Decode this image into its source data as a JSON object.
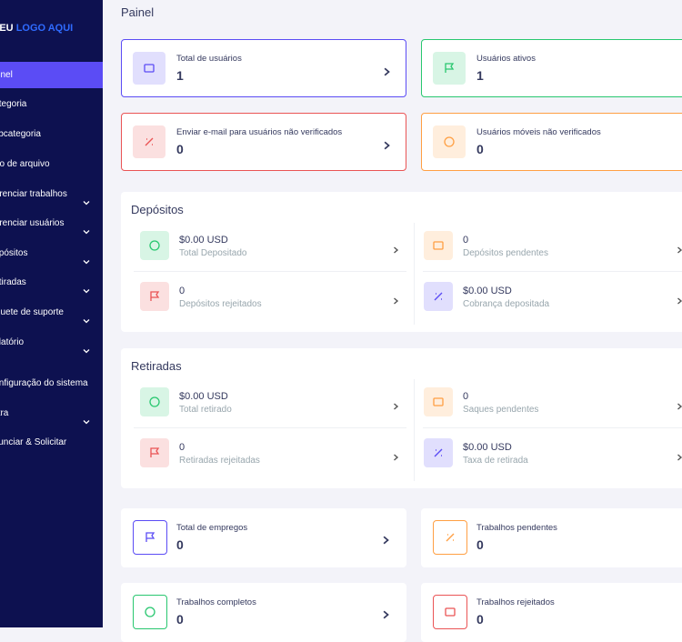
{
  "sidebar": {
    "logo_prefix": "SEU",
    "logo": "LOGO AQUI",
    "items": [
      {
        "label": "Painel",
        "active": true
      },
      {
        "label": "Categoria"
      },
      {
        "label": "Subcategoria"
      },
      {
        "label": "Tipo de arquivo"
      },
      {
        "label": "Gerenciar trabalhos",
        "submenu": true
      },
      {
        "label": "Gerenciar usuários",
        "submenu": true
      },
      {
        "label": "Depósitos",
        "submenu": true
      },
      {
        "label": "Retiradas",
        "submenu": true
      },
      {
        "label": "Tíquete de suporte",
        "submenu": true
      },
      {
        "label": "Relatório",
        "submenu": true
      },
      {
        "label": "Configuração do sistema"
      },
      {
        "label": "Extra",
        "submenu": true
      },
      {
        "label": "Anunciar & Solicitar"
      }
    ]
  },
  "page_title": "Painel",
  "summary_cards": [
    {
      "label": "Total de usuários",
      "value": 1,
      "color": "#5b4cf5"
    },
    {
      "label": "Usuários ativos",
      "value": 1,
      "color": "#28c76f"
    },
    {
      "label": "Enviar e-mail para usuários não verificados",
      "value": 0,
      "color": "#ea5455"
    },
    {
      "label": "Usuários móveis não verificados",
      "value": 0,
      "color": "#ff9f43"
    }
  ],
  "deposits": {
    "title": "Depósitos",
    "items": [
      {
        "value": "$0.00 USD",
        "label": "Total Depositado",
        "color": "#28c76f"
      },
      {
        "value": 0,
        "label": "Depósitos pendentes",
        "color": "#ff9f43"
      },
      {
        "value": 0,
        "label": "Depósitos rejeitados",
        "color": "#ea5455"
      },
      {
        "value": "$0.00 USD",
        "label": "Cobrança depositada",
        "color": "#5b4cf5"
      }
    ]
  },
  "withdrawals": {
    "title": "Retiradas",
    "items": [
      {
        "value": "$0.00 USD",
        "label": "Total retirado",
        "color": "#28c76f"
      },
      {
        "value": 0,
        "label": "Saques pendentes",
        "color": "#ff9f43"
      },
      {
        "value": 0,
        "label": "Retiradas rejeitadas",
        "color": "#ea5455"
      },
      {
        "value": "$0.00 USD",
        "label": "Taxa de retirada",
        "color": "#5b4cf5"
      }
    ]
  },
  "job_cards": [
    {
      "label": "Total de empregos",
      "value": 0,
      "color": "#5b4cf5"
    },
    {
      "label": "Trabalhos pendentes",
      "value": 0,
      "color": "#ff9f43"
    },
    {
      "label": "Trabalhos completos",
      "value": 0,
      "color": "#28c76f"
    },
    {
      "label": "Trabalhos rejeitados",
      "value": 0,
      "color": "#ea5455"
    }
  ]
}
